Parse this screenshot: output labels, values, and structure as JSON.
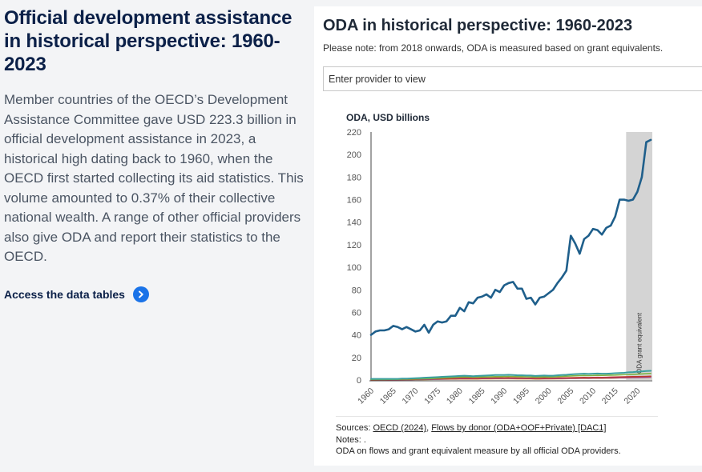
{
  "intro": {
    "heading": "Official development assistance in historical perspective: 1960-2023",
    "body": "Member countries of the OECD’s Development Assistance Committee gave USD 223.3 billion in official development assistance in 2023, a historical high dating back to 1960, when the OECD first started collecting its aid statistics. This volume amounted to 0.37% of their collective national wealth. A range of other official providers also give ODA and report their statistics to the OECD.",
    "link_label": "Access the data tables",
    "link_icon": "chevron-right-icon"
  },
  "panel": {
    "title": "ODA in historical perspective: 1960-2023",
    "note": "Please note: from 2018 onwards, ODA is measured based on grant equivalents.",
    "provider_placeholder": "Enter provider to view"
  },
  "sources": {
    "label": "Sources: ",
    "link1": "OECD (2024)",
    "sep": ", ",
    "link2": "Flows by donor (ODA+OOF+Private) [DAC1]",
    "notes": "Notes: .",
    "desc": "ODA on flows and grant equivalent measure by all official ODA providers."
  },
  "chart_data": {
    "type": "line",
    "title": "ODA, USD billions",
    "ylim": [
      0,
      220
    ],
    "yticks": [
      0,
      20,
      40,
      60,
      80,
      100,
      120,
      140,
      160,
      180,
      200,
      220
    ],
    "xlim": [
      1960,
      2023
    ],
    "xticks": [
      1960,
      1965,
      1970,
      1975,
      1980,
      1985,
      1990,
      1995,
      2000,
      2005,
      2010,
      2015,
      2020
    ],
    "grid": false,
    "highlight": {
      "from": 2018,
      "to": 2023,
      "label": "ODA grant equivalent",
      "color": "#d4d4d4"
    },
    "x": [
      1960,
      1961,
      1962,
      1963,
      1964,
      1965,
      1966,
      1967,
      1968,
      1969,
      1970,
      1971,
      1972,
      1973,
      1974,
      1975,
      1976,
      1977,
      1978,
      1979,
      1980,
      1981,
      1982,
      1983,
      1984,
      1985,
      1986,
      1987,
      1988,
      1989,
      1990,
      1991,
      1992,
      1993,
      1994,
      1995,
      1996,
      1997,
      1998,
      1999,
      2000,
      2001,
      2002,
      2003,
      2004,
      2005,
      2006,
      2007,
      2008,
      2009,
      2010,
      2011,
      2012,
      2013,
      2014,
      2015,
      2016,
      2017,
      2018,
      2019,
      2020,
      2021,
      2022,
      2023
    ],
    "series": [
      {
        "color": "#1f5f8b",
        "width": 2.6,
        "values": [
          40,
          43,
          44,
          44,
          45,
          48,
          47,
          45,
          47,
          45,
          43,
          44,
          49,
          42,
          49,
          52,
          51,
          52,
          57,
          57,
          64,
          61,
          69,
          68,
          73,
          74,
          76,
          73,
          80,
          78,
          84,
          86,
          87,
          81,
          81,
          72,
          73,
          67,
          73,
          74,
          77,
          80,
          86,
          91,
          97,
          128,
          121,
          112,
          125,
          128,
          134,
          133,
          129,
          135,
          137,
          145,
          160,
          160,
          159,
          160,
          167,
          180,
          211,
          213
        ]
      },
      {
        "color": "#3a9e9e",
        "width": 2,
        "values": [
          1,
          1,
          1,
          1,
          1,
          1,
          1,
          1.2,
          1.2,
          1.4,
          1.6,
          1.8,
          2,
          2.2,
          2.4,
          2.6,
          2.8,
          3,
          3.2,
          3.4,
          3.6,
          3.8,
          3.6,
          3.4,
          3.6,
          3.8,
          4,
          4.2,
          4.4,
          4.4,
          4.4,
          4.6,
          4.4,
          4.2,
          4.2,
          4,
          4,
          3.6,
          3.8,
          4,
          3.8,
          3.8,
          4.2,
          4.4,
          4.6,
          5,
          5.2,
          5.4,
          5.6,
          5.4,
          5.6,
          5.8,
          5.6,
          5.6,
          5.8,
          6,
          6.2,
          6.4,
          6.8,
          7,
          7.4,
          7.6,
          8,
          8.2
        ]
      },
      {
        "color": "#7cb342",
        "width": 1.6,
        "values": [
          0.5,
          0.5,
          0.5,
          0.5,
          0.6,
          0.6,
          0.6,
          0.7,
          0.7,
          0.8,
          0.9,
          1,
          1.1,
          1.2,
          1.4,
          1.6,
          1.8,
          2,
          2.2,
          2.4,
          2.6,
          2.8,
          2.7,
          2.6,
          2.6,
          2.7,
          2.8,
          2.9,
          3,
          3,
          3.1,
          3.2,
          3.1,
          3,
          3,
          2.9,
          2.8,
          2.6,
          2.7,
          2.8,
          2.7,
          2.8,
          3,
          3.2,
          3.4,
          3.6,
          3.8,
          3.9,
          4,
          3.9,
          4,
          4.2,
          4.1,
          4.2,
          4.3,
          4.4,
          4.6,
          4.7,
          4.8,
          5,
          5.2,
          5.4,
          5.6,
          5.8
        ]
      },
      {
        "color": "#c0392b",
        "width": 1.6,
        "values": [
          0.2,
          0.2,
          0.3,
          0.3,
          0.3,
          0.4,
          0.4,
          0.4,
          0.5,
          0.5,
          0.6,
          0.7,
          0.8,
          0.9,
          1,
          1.1,
          1.2,
          1.3,
          1.4,
          1.5,
          1.6,
          1.7,
          1.6,
          1.5,
          1.5,
          1.6,
          1.7,
          1.7,
          1.8,
          1.8,
          1.8,
          1.9,
          1.8,
          1.7,
          1.7,
          1.6,
          1.6,
          1.5,
          1.5,
          1.6,
          1.5,
          1.6,
          1.7,
          1.8,
          1.9,
          2,
          2.1,
          2.2,
          2.3,
          2.2,
          2.3,
          2.4,
          2.3,
          2.4,
          2.5,
          2.6,
          2.7,
          2.8,
          2.9,
          3,
          3,
          3.1,
          3.2,
          3.3
        ]
      },
      {
        "color": "#8e44ad",
        "width": 1.4,
        "values": [
          0.1,
          0.1,
          0.1,
          0.2,
          0.2,
          0.2,
          0.2,
          0.3,
          0.3,
          0.3,
          0.4,
          0.4,
          0.5,
          0.5,
          0.6,
          0.7,
          0.8,
          0.9,
          1,
          1,
          1.1,
          1.2,
          1.1,
          1.1,
          1.1,
          1.2,
          1.2,
          1.3,
          1.3,
          1.3,
          1.4,
          1.4,
          1.3,
          1.3,
          1.3,
          1.2,
          1.2,
          1.1,
          1.1,
          1.2,
          1.1,
          1.2,
          1.2,
          1.3,
          1.4,
          1.5,
          1.5,
          1.6,
          1.7,
          1.6,
          1.7,
          1.8,
          1.7,
          1.8,
          1.8,
          1.9,
          2,
          2,
          2.1,
          2.2,
          2.2,
          2.3,
          2.4,
          2.5
        ]
      },
      {
        "color": "#e6a23c",
        "width": 1.4,
        "values": [
          0.1,
          0.1,
          0.1,
          0.1,
          0.1,
          0.1,
          0.2,
          0.2,
          0.2,
          0.2,
          0.3,
          0.3,
          0.3,
          0.4,
          0.5,
          0.5,
          0.6,
          0.6,
          0.7,
          0.7,
          0.8,
          0.8,
          0.8,
          0.8,
          0.8,
          0.9,
          0.9,
          0.9,
          1,
          1,
          1,
          1,
          1,
          0.9,
          0.9,
          0.9,
          0.9,
          0.8,
          0.8,
          0.9,
          0.9,
          0.9,
          1,
          1,
          1.1,
          1.2,
          1.2,
          1.3,
          1.4,
          1.3,
          1.4,
          1.5,
          1.4,
          1.5,
          1.5,
          1.6,
          1.7,
          1.7,
          1.8,
          1.9,
          2,
          2,
          2.1,
          2.2
        ]
      }
    ]
  }
}
